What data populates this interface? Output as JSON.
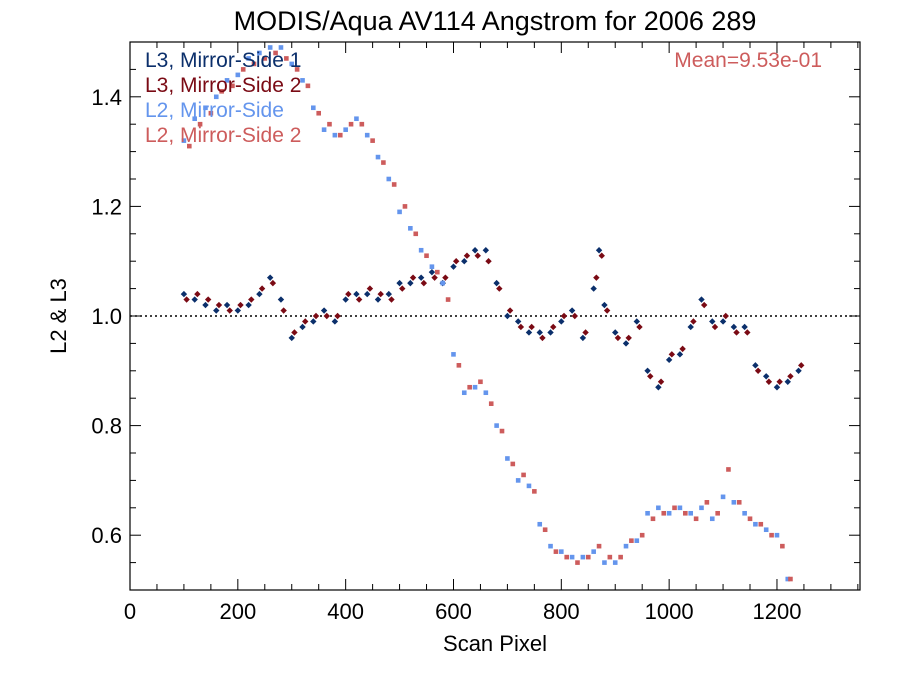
{
  "chart_data": {
    "type": "scatter",
    "title": "MODIS/Aqua AV114 Angstrom for 2006 289",
    "xlabel": "Scan Pixel",
    "ylabel": "L2 & L3",
    "xlim": [
      0,
      1354
    ],
    "ylim": [
      0.5,
      1.5
    ],
    "xticks": [
      0,
      200,
      400,
      600,
      800,
      1000,
      1200
    ],
    "yticks": [
      0.6,
      0.8,
      1.0,
      1.2,
      1.4
    ],
    "xtick_labels": [
      "0",
      "200",
      "400",
      "600",
      "800",
      "1000",
      "1200"
    ],
    "ytick_labels": [
      "0.6",
      "0.8",
      "1.0",
      "1.2",
      "1.4"
    ],
    "reference_line": 1.0,
    "annotation": "Mean=9.53e-01",
    "annotation_color": "#cd5c5c",
    "legend_position": "top-left",
    "series": [
      {
        "name": "L3, Mirror-Side 1",
        "color": "#0b2f6b",
        "marker": "diamond",
        "x": [
          100,
          120,
          140,
          160,
          180,
          200,
          220,
          240,
          260,
          280,
          300,
          320,
          340,
          360,
          380,
          400,
          420,
          440,
          460,
          480,
          500,
          520,
          540,
          560,
          580,
          600,
          620,
          640,
          660,
          680,
          700,
          720,
          740,
          760,
          780,
          800,
          820,
          840,
          860,
          870,
          880,
          900,
          920,
          940,
          960,
          980,
          1000,
          1020,
          1040,
          1060,
          1080,
          1100,
          1120,
          1140,
          1160,
          1180,
          1200,
          1220,
          1240
        ],
        "y": [
          1.04,
          1.03,
          1.02,
          1.01,
          1.02,
          1.01,
          1.02,
          1.04,
          1.07,
          1.03,
          0.96,
          0.98,
          0.99,
          1.01,
          0.99,
          1.03,
          1.04,
          1.04,
          1.03,
          1.04,
          1.06,
          1.06,
          1.07,
          1.08,
          1.06,
          1.09,
          1.1,
          1.12,
          1.12,
          1.06,
          1.0,
          0.99,
          0.97,
          0.97,
          0.97,
          0.99,
          1.01,
          0.96,
          1.05,
          1.12,
          1.02,
          0.97,
          0.95,
          0.99,
          0.9,
          0.87,
          0.92,
          0.93,
          0.98,
          1.03,
          0.99,
          0.99,
          0.98,
          0.98,
          0.91,
          0.89,
          0.87,
          0.88,
          0.9
        ]
      },
      {
        "name": "L3, Mirror-Side 2",
        "color": "#7a0a14",
        "marker": "diamond",
        "x": [
          105,
          125,
          145,
          165,
          185,
          205,
          225,
          245,
          265,
          285,
          305,
          325,
          345,
          365,
          385,
          405,
          425,
          445,
          465,
          485,
          505,
          525,
          545,
          565,
          585,
          605,
          625,
          645,
          665,
          685,
          705,
          725,
          745,
          765,
          785,
          805,
          825,
          845,
          865,
          875,
          885,
          905,
          925,
          945,
          965,
          985,
          1005,
          1025,
          1045,
          1065,
          1085,
          1105,
          1125,
          1145,
          1165,
          1185,
          1205,
          1225,
          1245
        ],
        "y": [
          1.03,
          1.04,
          1.03,
          1.02,
          1.01,
          1.02,
          1.03,
          1.05,
          1.06,
          1.01,
          0.97,
          0.99,
          1.0,
          1.0,
          1.0,
          1.04,
          1.03,
          1.05,
          1.04,
          1.03,
          1.05,
          1.07,
          1.06,
          1.07,
          1.07,
          1.1,
          1.11,
          1.11,
          1.1,
          1.05,
          1.01,
          0.98,
          0.98,
          0.96,
          0.98,
          1.0,
          1.0,
          0.97,
          1.07,
          1.11,
          1.01,
          0.96,
          0.96,
          0.98,
          0.89,
          0.88,
          0.93,
          0.94,
          0.99,
          1.02,
          0.98,
          1.0,
          0.97,
          0.97,
          0.9,
          0.88,
          0.88,
          0.89,
          0.91
        ]
      },
      {
        "name": "L2, Mirror-Side",
        "color": "#6495ed",
        "marker": "square",
        "x": [
          100,
          120,
          140,
          160,
          180,
          200,
          220,
          240,
          260,
          280,
          300,
          320,
          340,
          360,
          380,
          400,
          420,
          440,
          460,
          480,
          500,
          520,
          540,
          560,
          580,
          600,
          620,
          640,
          660,
          680,
          700,
          720,
          740,
          760,
          780,
          800,
          820,
          840,
          860,
          880,
          900,
          920,
          940,
          960,
          980,
          1000,
          1020,
          1040,
          1060,
          1080,
          1100,
          1120,
          1140,
          1160,
          1180,
          1200,
          1220
        ],
        "y": [
          1.32,
          1.36,
          1.38,
          1.4,
          1.43,
          1.44,
          1.47,
          1.48,
          1.49,
          1.49,
          1.46,
          1.43,
          1.38,
          1.34,
          1.33,
          1.34,
          1.36,
          1.33,
          1.29,
          1.25,
          1.19,
          1.16,
          1.12,
          1.09,
          1.06,
          0.93,
          0.86,
          0.87,
          0.86,
          0.8,
          0.74,
          0.7,
          0.69,
          0.62,
          0.58,
          0.57,
          0.56,
          0.56,
          0.57,
          0.55,
          0.55,
          0.58,
          0.59,
          0.64,
          0.65,
          0.64,
          0.65,
          0.64,
          0.65,
          0.63,
          0.67,
          0.66,
          0.64,
          0.62,
          0.61,
          0.6,
          0.52
        ]
      },
      {
        "name": "L2, Mirror-Side 2",
        "color": "#cd5c5c",
        "marker": "square",
        "x": [
          110,
          130,
          150,
          170,
          190,
          210,
          230,
          250,
          270,
          290,
          310,
          330,
          350,
          370,
          390,
          410,
          430,
          450,
          470,
          490,
          510,
          530,
          550,
          570,
          590,
          610,
          630,
          650,
          670,
          690,
          710,
          730,
          750,
          770,
          790,
          810,
          830,
          850,
          870,
          890,
          910,
          930,
          950,
          970,
          990,
          1010,
          1030,
          1050,
          1070,
          1090,
          1110,
          1130,
          1150,
          1170,
          1190,
          1210,
          1225
        ],
        "y": [
          1.31,
          1.35,
          1.37,
          1.41,
          1.42,
          1.45,
          1.46,
          1.47,
          1.48,
          1.47,
          1.45,
          1.42,
          1.37,
          1.35,
          1.33,
          1.35,
          1.35,
          1.32,
          1.28,
          1.24,
          1.2,
          1.15,
          1.11,
          1.08,
          1.03,
          0.91,
          0.87,
          0.88,
          0.84,
          0.79,
          0.73,
          0.71,
          0.68,
          0.61,
          0.57,
          0.56,
          0.55,
          0.56,
          0.58,
          0.56,
          0.56,
          0.59,
          0.6,
          0.63,
          0.64,
          0.65,
          0.64,
          0.63,
          0.66,
          0.64,
          0.72,
          0.66,
          0.63,
          0.62,
          0.6,
          0.58,
          0.52
        ]
      }
    ]
  }
}
